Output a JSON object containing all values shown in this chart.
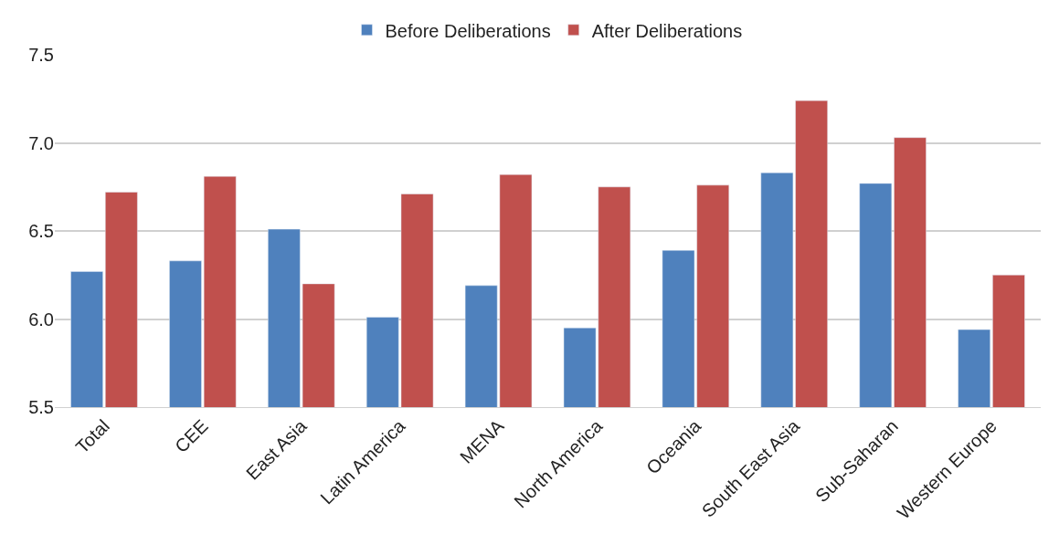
{
  "chart_data": {
    "type": "bar",
    "categories": [
      "Total",
      "CEE",
      "East Asia",
      "Latin America",
      "MENA",
      "North America",
      "Oceania",
      "South East Asia",
      "Sub-Saharan",
      "Western Europe"
    ],
    "series": [
      {
        "name": "Before Deliberations",
        "color": "#4f81bd",
        "values": [
          6.27,
          6.33,
          6.51,
          6.01,
          6.19,
          5.95,
          6.39,
          6.83,
          6.77,
          5.94
        ]
      },
      {
        "name": "After Deliberations",
        "color": "#c0504d",
        "values": [
          6.72,
          6.81,
          6.2,
          6.71,
          6.82,
          6.75,
          6.76,
          7.24,
          7.03,
          6.25
        ]
      }
    ],
    "ylim": [
      5.5,
      7.5
    ],
    "yticks": [
      {
        "value": 5.5,
        "label": "5.5"
      },
      {
        "value": 6.0,
        "label": "6.0"
      },
      {
        "value": 6.5,
        "label": "6.5"
      },
      {
        "value": 7.0,
        "label": "7.0"
      },
      {
        "value": 7.5,
        "label": "7.5"
      }
    ],
    "grid": "y",
    "legend": "top"
  }
}
